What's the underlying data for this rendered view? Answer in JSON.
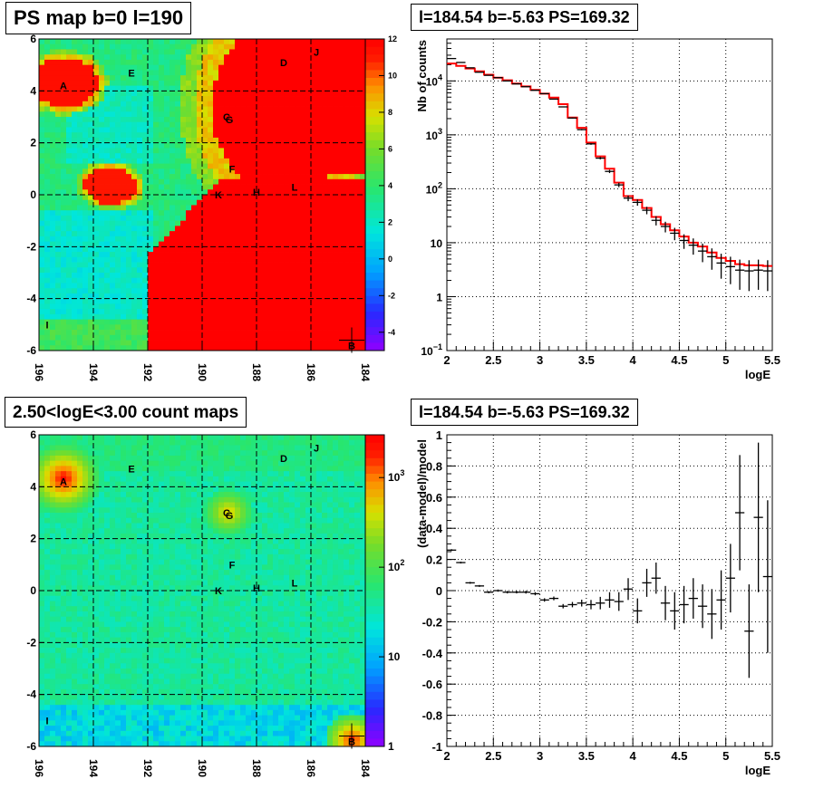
{
  "titles": {
    "tl": "PS map b=0 l=190",
    "tr": "l=184.54 b=-5.63 PS=169.32",
    "bl": "2.50<logE<3.00 count maps",
    "br": "l=184.54 b=-5.63 PS=169.32"
  },
  "chart_data": [
    {
      "type": "heatmap",
      "title": "PS map b=0 l=190",
      "x_ticks": [
        "196",
        "194",
        "192",
        "190",
        "188",
        "186",
        "184"
      ],
      "y_ticks": [
        "6",
        "4",
        "2",
        "0",
        "-2",
        "-4",
        "-6"
      ],
      "xlim": [
        196,
        184
      ],
      "ylim": [
        -6,
        6
      ],
      "colorbar": {
        "min": -5,
        "max": 12,
        "ticks": [
          "12",
          "10",
          "8",
          "6",
          "4",
          "2",
          "0",
          "-2",
          "-4"
        ]
      },
      "markers": [
        {
          "label": "A",
          "l": 195.1,
          "b": 4.2
        },
        {
          "label": "E",
          "l": 192.6,
          "b": 4.7
        },
        {
          "label": "D",
          "l": 187.0,
          "b": 5.1
        },
        {
          "label": "J",
          "l": 185.8,
          "b": 5.5
        },
        {
          "label": "G",
          "l": 189.0,
          "b": 2.9
        },
        {
          "label": "C",
          "l": 189.1,
          "b": 3.0
        },
        {
          "label": "F",
          "l": 188.9,
          "b": 1.0
        },
        {
          "label": "K",
          "l": 189.4,
          "b": 0.0
        },
        {
          "label": "H",
          "l": 188.0,
          "b": 0.1
        },
        {
          "label": "L",
          "l": 186.6,
          "b": 0.3
        },
        {
          "label": "I",
          "l": 195.7,
          "b": -5.0
        },
        {
          "label": "B",
          "l": 184.5,
          "b": -5.8
        }
      ]
    },
    {
      "type": "line",
      "title": "l=184.54 b=-5.63 PS=169.32",
      "xlabel": "logE",
      "ylabel": "Nb of counts",
      "xlim": [
        2,
        5.5
      ],
      "ylim": [
        0.1,
        60000
      ],
      "yscale": "log",
      "x_ticks": [
        "2",
        "2.5",
        "3",
        "3.5",
        "4",
        "4.5",
        "5",
        "5.5"
      ],
      "y_ticks": [
        {
          "value": 10000,
          "base": "10",
          "exp": "4"
        },
        {
          "value": 1000,
          "base": "10",
          "exp": "3"
        },
        {
          "value": 100,
          "base": "10",
          "exp": "2"
        },
        {
          "value": 10,
          "base": "10",
          "exp": ""
        },
        {
          "value": 1,
          "base": "1",
          "exp": ""
        },
        {
          "value": 0.1,
          "base": "10",
          "exp": "−1"
        }
      ],
      "x": [
        2.05,
        2.15,
        2.25,
        2.35,
        2.45,
        2.55,
        2.65,
        2.75,
        2.85,
        2.95,
        3.05,
        3.15,
        3.25,
        3.35,
        3.45,
        3.55,
        3.65,
        3.75,
        3.85,
        3.95,
        4.05,
        4.15,
        4.25,
        4.35,
        4.45,
        4.55,
        4.65,
        4.75,
        4.85,
        4.95,
        5.05,
        5.15,
        5.25,
        5.35,
        5.45
      ],
      "series": [
        {
          "name": "data",
          "color": "#000000",
          "values": [
            26000,
            22000,
            17500,
            14500,
            12700,
            11500,
            10000,
            8800,
            7800,
            6700,
            5800,
            4600,
            3300,
            2050,
            1250,
            680,
            370,
            210,
            118,
            67,
            56,
            40,
            26,
            20,
            15,
            11,
            9,
            7,
            5.5,
            4.2,
            3.6,
            3.1,
            3.0,
            3.1,
            3.0
          ]
        },
        {
          "name": "model",
          "color": "#ff0000",
          "values": [
            21000,
            19000,
            17000,
            15000,
            13000,
            11500,
            10300,
            8900,
            7900,
            6800,
            5800,
            4900,
            3700,
            2100,
            1350,
            720,
            400,
            235,
            130,
            73,
            62,
            44,
            30,
            22,
            17,
            13,
            10,
            8.5,
            6.6,
            5.2,
            4.6,
            4.0,
            3.8,
            3.8,
            3.7
          ]
        }
      ]
    },
    {
      "type": "heatmap",
      "title": "2.50<logE<3.00 count maps",
      "x_ticks": [
        "196",
        "194",
        "192",
        "190",
        "188",
        "186",
        "184"
      ],
      "y_ticks": [
        "6",
        "4",
        "2",
        "0",
        "-2",
        "-4",
        "-6"
      ],
      "xlim": [
        196,
        184
      ],
      "ylim": [
        -6,
        6
      ],
      "colorbar": {
        "scale": "log",
        "min": 1,
        "max": 3000,
        "ticks": [
          {
            "value": 1000,
            "base": "10",
            "exp": "3"
          },
          {
            "value": 100,
            "base": "10",
            "exp": "2"
          },
          {
            "value": 10,
            "base": "10",
            "exp": ""
          },
          {
            "value": 1,
            "base": "1",
            "exp": ""
          }
        ]
      },
      "markers": [
        {
          "label": "A",
          "l": 195.1,
          "b": 4.2
        },
        {
          "label": "E",
          "l": 192.6,
          "b": 4.7
        },
        {
          "label": "D",
          "l": 187.0,
          "b": 5.1
        },
        {
          "label": "J",
          "l": 185.8,
          "b": 5.5
        },
        {
          "label": "G",
          "l": 189.0,
          "b": 2.9
        },
        {
          "label": "C",
          "l": 189.1,
          "b": 3.0
        },
        {
          "label": "F",
          "l": 188.9,
          "b": 1.0
        },
        {
          "label": "K",
          "l": 189.4,
          "b": 0.0
        },
        {
          "label": "H",
          "l": 188.0,
          "b": 0.1
        },
        {
          "label": "L",
          "l": 186.6,
          "b": 0.3
        },
        {
          "label": "I",
          "l": 195.7,
          "b": -5.0
        },
        {
          "label": "B",
          "l": 184.5,
          "b": -5.8
        }
      ]
    },
    {
      "type": "scatter",
      "title": "l=184.54 b=-5.63 PS=169.32",
      "xlabel": "logE",
      "ylabel": "(data-model)/model",
      "xlim": [
        2,
        5.5
      ],
      "ylim": [
        -1,
        1
      ],
      "x_ticks": [
        "2",
        "2.5",
        "3",
        "3.5",
        "4",
        "4.5",
        "5",
        "5.5"
      ],
      "y_ticks": [
        "1",
        "0.8",
        "0.6",
        "0.4",
        "0.2",
        "0",
        "-0.2",
        "-0.4",
        "-0.6",
        "-0.8",
        "-1"
      ],
      "points": [
        {
          "x": 2.05,
          "y": 0.26,
          "err": 0.006
        },
        {
          "x": 2.15,
          "y": 0.18,
          "err": 0.006
        },
        {
          "x": 2.25,
          "y": 0.05,
          "err": 0.006
        },
        {
          "x": 2.35,
          "y": 0.03,
          "err": 0.006
        },
        {
          "x": 2.45,
          "y": -0.01,
          "err": 0.007
        },
        {
          "x": 2.55,
          "y": 0.0,
          "err": 0.007
        },
        {
          "x": 2.65,
          "y": -0.01,
          "err": 0.008
        },
        {
          "x": 2.75,
          "y": -0.01,
          "err": 0.008
        },
        {
          "x": 2.85,
          "y": -0.01,
          "err": 0.009
        },
        {
          "x": 2.95,
          "y": -0.02,
          "err": 0.01
        },
        {
          "x": 3.05,
          "y": -0.06,
          "err": 0.011
        },
        {
          "x": 3.15,
          "y": -0.05,
          "err": 0.012
        },
        {
          "x": 3.25,
          "y": -0.1,
          "err": 0.014
        },
        {
          "x": 3.35,
          "y": -0.09,
          "err": 0.017
        },
        {
          "x": 3.45,
          "y": -0.08,
          "err": 0.022
        },
        {
          "x": 3.55,
          "y": -0.09,
          "err": 0.03
        },
        {
          "x": 3.65,
          "y": -0.08,
          "err": 0.04
        },
        {
          "x": 3.75,
          "y": -0.06,
          "err": 0.05
        },
        {
          "x": 3.85,
          "y": -0.07,
          "err": 0.06
        },
        {
          "x": 3.95,
          "y": 0.01,
          "err": 0.07
        },
        {
          "x": 4.05,
          "y": -0.13,
          "err": 0.08
        },
        {
          "x": 4.15,
          "y": 0.05,
          "err": 0.09
        },
        {
          "x": 4.25,
          "y": 0.08,
          "err": 0.1
        },
        {
          "x": 4.35,
          "y": -0.08,
          "err": 0.11
        },
        {
          "x": 4.45,
          "y": -0.13,
          "err": 0.12
        },
        {
          "x": 4.55,
          "y": -0.09,
          "err": 0.12
        },
        {
          "x": 4.65,
          "y": -0.05,
          "err": 0.13
        },
        {
          "x": 4.75,
          "y": -0.1,
          "err": 0.14
        },
        {
          "x": 4.85,
          "y": -0.15,
          "err": 0.16
        },
        {
          "x": 4.95,
          "y": -0.06,
          "err": 0.19
        },
        {
          "x": 5.05,
          "y": 0.08,
          "err": 0.22
        },
        {
          "x": 5.15,
          "y": 0.5,
          "err": 0.37
        },
        {
          "x": 5.25,
          "y": -0.26,
          "err": 0.3
        },
        {
          "x": 5.35,
          "y": 0.47,
          "err": 0.48
        },
        {
          "x": 5.45,
          "y": 0.09,
          "err": 0.49
        }
      ]
    }
  ]
}
